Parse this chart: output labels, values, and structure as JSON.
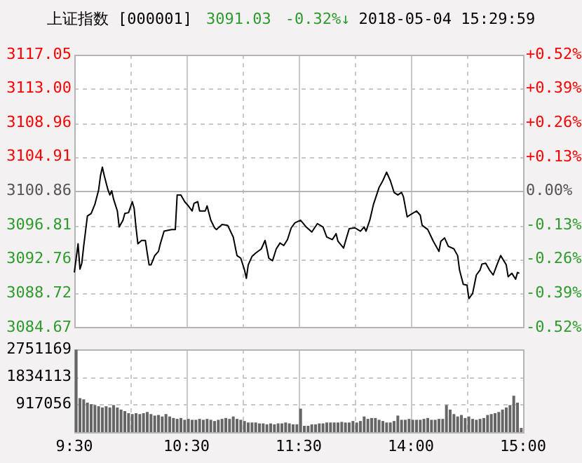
{
  "chart_data": [
    {
      "type": "line",
      "title": "上证指数 [000001]",
      "annotations": [
        "3091.03",
        "-0.32%↓",
        "2018-05-04 15:29:59"
      ],
      "categories": [
        null,
        null,
        null,
        null,
        null,
        null,
        null,
        null,
        null,
        null,
        null,
        null,
        null,
        null,
        null,
        null,
        null,
        null,
        null,
        null,
        null,
        null,
        null,
        null,
        null,
        null,
        null,
        null,
        null,
        null,
        null,
        null,
        null,
        null,
        null,
        null,
        null,
        null,
        null,
        null,
        null,
        null,
        null,
        null,
        null,
        null,
        null,
        null,
        null,
        null,
        null,
        null,
        null,
        null,
        null,
        null,
        null,
        null,
        null,
        null,
        null,
        null,
        null,
        null,
        null,
        null,
        null,
        null,
        null,
        null,
        null,
        null,
        null,
        null,
        null,
        null,
        null,
        null,
        null,
        null,
        null,
        null,
        null,
        null,
        null,
        null,
        null,
        null,
        null,
        null,
        null,
        null,
        null,
        null,
        null,
        null,
        null,
        null,
        null,
        null,
        null,
        null,
        null,
        null,
        null,
        null,
        null,
        null,
        null,
        null,
        null,
        null,
        null,
        null,
        null,
        null,
        null,
        null,
        null,
        null,
        null,
        null,
        null,
        null,
        null,
        null,
        null,
        null,
        null,
        null,
        null,
        null,
        null,
        null,
        null,
        null,
        null,
        null,
        null,
        null,
        null,
        null,
        null,
        null,
        null,
        null,
        null,
        null,
        null,
        null,
        null,
        null,
        null,
        null,
        null,
        null,
        null,
        null,
        null,
        null,
        null,
        null,
        null,
        null,
        null,
        null,
        null,
        null,
        null,
        null,
        null,
        null,
        null,
        null,
        null,
        null,
        null,
        null,
        null,
        null,
        null,
        null,
        null,
        null,
        null,
        null,
        null,
        null,
        null,
        null,
        null,
        null,
        null,
        null,
        null,
        null,
        null,
        null,
        null,
        null,
        null,
        null,
        null,
        null,
        null,
        null,
        null,
        null,
        null,
        null,
        null,
        null,
        null,
        null,
        null,
        null,
        null,
        null,
        null,
        null,
        null,
        null,
        null,
        null,
        null,
        null,
        null,
        null,
        null,
        null,
        null,
        null,
        null,
        null,
        null,
        null,
        null,
        null,
        null,
        null,
        null
      ],
      "series": [
        {
          "color": "#000000",
          "values": [
            3091.2,
            null,
            3094.6,
            3091.6,
            3092.3,
            3094.3,
            null,
            3097.9,
            null,
            3098.2,
            null,
            3099.3,
            null,
            3101.0,
            3102.7,
            3103.7,
            3102.7,
            null,
            3101.0,
            3100.4,
            3100.9,
            3099.9,
            null,
            3098.5,
            3096.6,
            null,
            3097.4,
            3098.2,
            null,
            3098.3,
            null,
            3099.6,
            3098.8,
            3096.5,
            3094.6,
            null,
            3095.0,
            null,
            3095.0,
            3093.5,
            3092.1,
            3092.1,
            null,
            3093.2,
            null,
            3093.7,
            3094.6,
            null,
            3096.1,
            null,
            null,
            null,
            3096.3,
            null,
            3096.3,
            3100.4,
            null,
            3100.4,
            null,
            3099.6,
            null,
            3099.1,
            null,
            3098.5,
            3099.4,
            null,
            3099.6,
            3098.5,
            null,
            null,
            3098.5,
            3099.1,
            null,
            3097.4,
            null,
            3096.5,
            3096.3,
            null,
            null,
            3096.9,
            null,
            null,
            3096.8,
            null,
            null,
            3095.4,
            null,
            3093.2,
            null,
            3092.9,
            null,
            3091.5,
            3090.5,
            3092.1,
            null,
            3093.1,
            null,
            3093.5,
            null,
            null,
            3094.0,
            null,
            3095.0,
            3094.0,
            3092.9,
            null,
            3092.6,
            null,
            3094.0,
            null,
            3094.7,
            null,
            3094.4,
            null,
            3095.1,
            null,
            3096.5,
            null,
            3097.1,
            null,
            3097.3,
            3097.4,
            null,
            null,
            3096.6,
            null,
            null,
            3096.0,
            null,
            null,
            3097.0,
            null,
            null,
            3096.6,
            null,
            3095.4,
            null,
            null,
            3095.1,
            null,
            3095.8,
            3094.9,
            null,
            null,
            3094.1,
            3094.9,
            null,
            3096.4,
            null,
            null,
            3096.5,
            null,
            null,
            3096.1,
            null,
            3096.6,
            3096.1,
            null,
            3097.4,
            null,
            3099.3,
            null,
            null,
            3101.3,
            null,
            3102.1,
            null,
            3103.1,
            null,
            3102.1,
            null,
            3100.7,
            null,
            3100.4,
            null,
            3100.7,
            3100.2,
            null,
            3097.8,
            null,
            3098.1,
            null,
            null,
            3098.5,
            null,
            3098.0,
            3096.8,
            null,
            null,
            3096.3,
            null,
            null,
            3094.9,
            null,
            null,
            3093.7,
            3094.9,
            null,
            3095.3,
            null,
            3094.3,
            null,
            null,
            3094.0,
            null,
            3093.2,
            3091.5,
            null,
            3089.8,
            null,
            3089.7,
            3088.1,
            null,
            3088.7,
            null,
            3090.9,
            null,
            3091.5,
            3092.2,
            null,
            3092.3,
            null,
            3091.5,
            null,
            3090.9,
            null,
            3092.1,
            null,
            3093.2,
            null,
            null,
            3092.1,
            3090.7,
            null,
            3091.1,
            null,
            3090.4,
            3091.2,
            3091.1,
            null,
            null
          ]
        }
      ],
      "ylim": [
        3084.67,
        3117.05
      ],
      "yticks": [
        3084.67,
        3088.72,
        3092.76,
        3096.81,
        3100.86,
        3104.91,
        3108.96,
        {
          "value": 3113.0,
          "label": "3113.00"
        },
        3117.05
      ],
      "y2lim": [
        -0.52,
        0.52
      ],
      "y2ticks": [
        {
          "value": -0.52,
          "label": "-0.52%"
        },
        {
          "value": -0.39,
          "label": "-0.39%"
        },
        {
          "value": -0.26,
          "label": "-0.26%"
        },
        {
          "value": -0.13,
          "label": "-0.13%"
        },
        {
          "value": 0,
          "label": "0.00%"
        },
        {
          "value": 0.13,
          "label": "+0.13%"
        },
        {
          "value": 0.26,
          "label": "+0.26%"
        },
        {
          "value": 0.39,
          "label": "+0.39%"
        },
        {
          "value": 0.52,
          "label": "+0.52%"
        }
      ],
      "ref_lines": [
        {
          "axis": "y",
          "value": 3100.86,
          "label": null
        }
      ],
      "grid": true,
      "tick_labels": "y",
      "legend": false,
      "marker": "none",
      "line_style": "solid"
    },
    {
      "type": "bar",
      "categories": [
        "9:30",
        null,
        null,
        null,
        null,
        null,
        null,
        null,
        null,
        null,
        null,
        null,
        null,
        null,
        null,
        null,
        null,
        null,
        null,
        null,
        null,
        null,
        null,
        null,
        null,
        null,
        null,
        null,
        null,
        null,
        null,
        null,
        null,
        null,
        null,
        null,
        null,
        null,
        null,
        null,
        null,
        null,
        null,
        null,
        null,
        null,
        null,
        null,
        null,
        null,
        null,
        null,
        null,
        null,
        null,
        null,
        null,
        null,
        null,
        null,
        "10:30",
        null,
        null,
        null,
        null,
        null,
        null,
        null,
        null,
        null,
        null,
        null,
        null,
        null,
        null,
        null,
        null,
        null,
        null,
        null,
        null,
        null,
        null,
        null,
        null,
        null,
        null,
        null,
        null,
        null,
        null,
        null,
        null,
        null,
        null,
        null,
        null,
        null,
        null,
        null,
        null,
        null,
        null,
        null,
        null,
        null,
        null,
        null,
        null,
        null,
        null,
        null,
        null,
        null,
        null,
        null,
        null,
        null,
        null,
        null,
        "11:30",
        null,
        null,
        null,
        null,
        null,
        null,
        null,
        null,
        null,
        null,
        null,
        null,
        null,
        null,
        null,
        null,
        null,
        null,
        null,
        null,
        null,
        null,
        null,
        null,
        null,
        null,
        null,
        null,
        null,
        null,
        null,
        null,
        null,
        null,
        null,
        null,
        null,
        null,
        null,
        null,
        null,
        null,
        null,
        null,
        null,
        null,
        null,
        null,
        null,
        null,
        null,
        null,
        null,
        null,
        null,
        null,
        null,
        null,
        null,
        "14:00",
        null,
        null,
        null,
        null,
        null,
        null,
        null,
        null,
        null,
        null,
        null,
        null,
        null,
        null,
        null,
        null,
        null,
        null,
        null,
        null,
        null,
        null,
        null,
        null,
        null,
        null,
        null,
        null,
        null,
        null,
        null,
        null,
        null,
        null,
        null,
        null,
        null,
        null,
        null,
        null,
        null,
        null,
        null,
        null,
        null,
        null,
        null,
        null,
        null,
        null,
        null,
        null,
        null,
        null,
        null,
        null,
        null,
        null,
        null,
        "15:00"
      ],
      "series": [
        {
          "color": "#666666",
          "values": [
            null,
            2740000,
            null,
            1130000,
            null,
            1090000,
            null,
            980000,
            null,
            930000,
            null,
            900000,
            null,
            860000,
            null,
            820000,
            null,
            860000,
            null,
            820000,
            null,
            900000,
            null,
            820000,
            null,
            750000,
            null,
            700000,
            null,
            630000,
            null,
            600000,
            null,
            630000,
            null,
            600000,
            null,
            630000,
            null,
            670000,
            null,
            600000,
            null,
            550000,
            null,
            570000,
            null,
            520000,
            null,
            600000,
            null,
            520000,
            null,
            470000,
            null,
            440000,
            null,
            470000,
            null,
            410000,
            null,
            440000,
            null,
            410000,
            null,
            410000,
            null,
            440000,
            null,
            410000,
            null,
            440000,
            null,
            410000,
            null,
            370000,
            null,
            410000,
            null,
            440000,
            null,
            470000,
            null,
            440000,
            null,
            520000,
            null,
            440000,
            null,
            410000,
            null,
            370000,
            null,
            320000,
            null,
            320000,
            null,
            320000,
            null,
            290000,
            null,
            290000,
            null,
            260000,
            null,
            290000,
            null,
            260000,
            null,
            290000,
            null,
            290000,
            null,
            320000,
            null,
            290000,
            null,
            260000,
            null,
            260000,
            null,
            780000,
            null,
            210000,
            null,
            210000,
            null,
            260000,
            null,
            260000,
            null,
            290000,
            null,
            290000,
            null,
            320000,
            null,
            320000,
            null,
            320000,
            null,
            320000,
            null,
            340000,
            null,
            320000,
            null,
            320000,
            null,
            370000,
            null,
            320000,
            null,
            370000,
            null,
            520000,
            null,
            440000,
            null,
            470000,
            null,
            470000,
            null,
            410000,
            null,
            370000,
            null,
            320000,
            null,
            320000,
            null,
            370000,
            null,
            550000,
            null,
            410000,
            null,
            410000,
            null,
            440000,
            null,
            410000,
            null,
            410000,
            null,
            410000,
            null,
            440000,
            null,
            470000,
            null,
            410000,
            null,
            410000,
            null,
            440000,
            null,
            440000,
            null,
            900000,
            null,
            750000,
            null,
            600000,
            null,
            520000,
            null,
            570000,
            null,
            470000,
            null,
            520000,
            null,
            440000,
            null,
            410000,
            null,
            440000,
            null,
            470000,
            null,
            570000,
            null,
            600000,
            null,
            630000,
            null,
            670000,
            null,
            750000,
            null,
            820000,
            null,
            900000,
            null,
            1210000,
            null,
            980000,
            null,
            140000,
            null
          ]
        }
      ],
      "ylim": [
        0,
        2751169
      ],
      "yticks": [
        917056,
        1834113,
        2751169
      ],
      "grid": true,
      "legend": false
    }
  ]
}
